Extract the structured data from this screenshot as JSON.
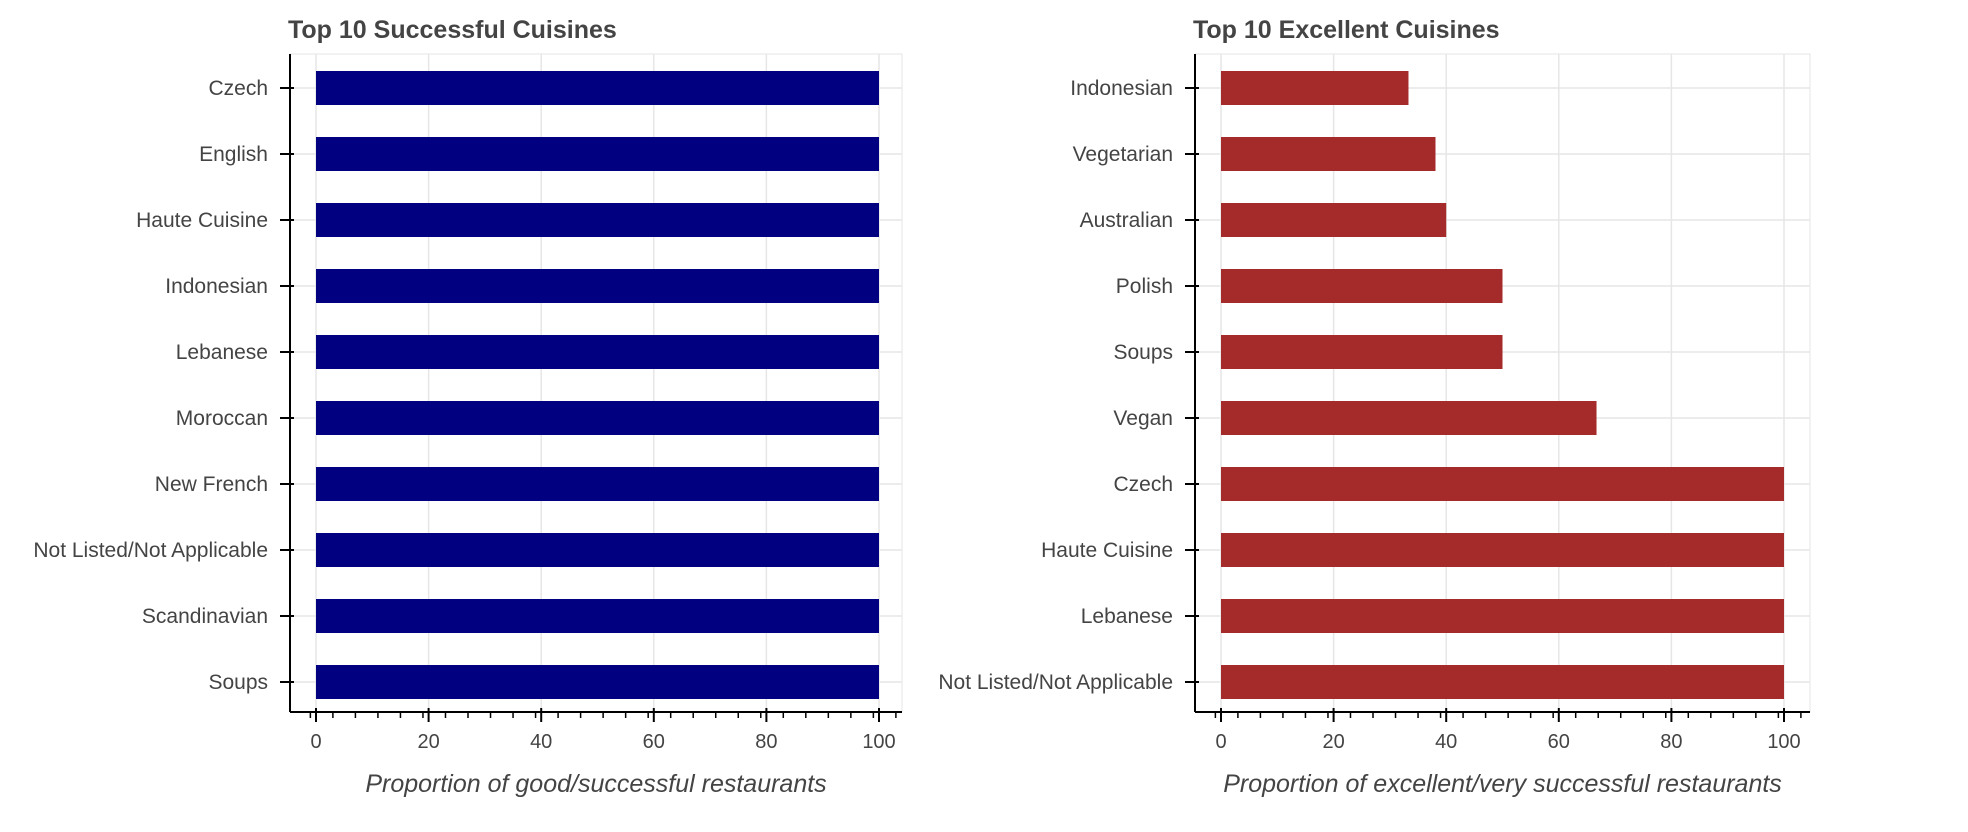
{
  "chart_data": [
    {
      "type": "bar",
      "orientation": "horizontal",
      "title": "Top 10 Successful Cuisines",
      "xlabel": "Proportion of good/successful restaurants",
      "ylabel": "",
      "categories": [
        "Czech",
        "English",
        "Haute Cuisine",
        "Indonesian",
        "Lebanese",
        "Moroccan",
        "New French",
        "Not Listed/Not Applicable",
        "Scandinavian",
        "Soups"
      ],
      "values": [
        100,
        100,
        100,
        100,
        100,
        100,
        100,
        100,
        100,
        100
      ],
      "xlim": [
        -5,
        105
      ],
      "xticks": [
        0,
        20,
        40,
        60,
        80,
        100
      ],
      "grid": true,
      "color": "#000080"
    },
    {
      "type": "bar",
      "orientation": "horizontal",
      "title": "Top 10 Excellent Cuisines",
      "xlabel": "Proportion of excellent/very successful restaurants",
      "ylabel": "",
      "categories": [
        "Indonesian",
        "Vegetarian",
        "Australian",
        "Polish",
        "Soups",
        "Vegan",
        "Czech",
        "Haute Cuisine",
        "Lebanese",
        "Not Listed/Not Applicable"
      ],
      "values": [
        33.3,
        38.1,
        40,
        50,
        50,
        66.7,
        100,
        100,
        100,
        100
      ],
      "xlim": [
        -5,
        105
      ],
      "xticks": [
        0,
        20,
        40,
        60,
        80,
        100
      ],
      "grid": true,
      "color": "#a52a2a"
    }
  ]
}
